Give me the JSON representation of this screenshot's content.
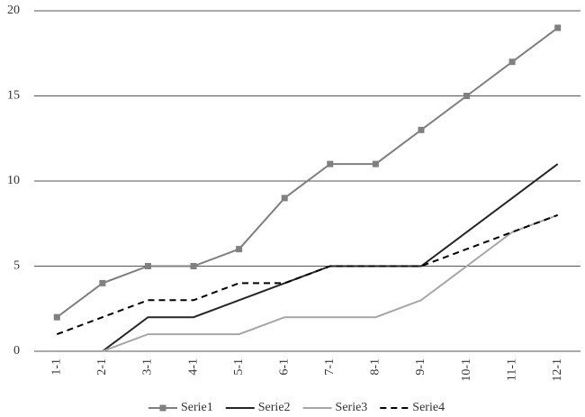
{
  "chart_data": {
    "type": "line",
    "categories": [
      "1-1",
      "2-1",
      "3-1",
      "4-1",
      "5-1",
      "6-1",
      "7-1",
      "8-1",
      "9-1",
      "10-1",
      "11-1",
      "12-1"
    ],
    "series": [
      {
        "name": "Serie1",
        "color": "#808080",
        "marker": "square",
        "values": [
          2,
          4,
          5,
          5,
          6,
          9,
          11,
          11,
          13,
          15,
          17,
          19
        ]
      },
      {
        "name": "Serie2",
        "color": "#262626",
        "values": [
          null,
          0,
          2,
          2,
          3,
          4,
          5,
          5,
          5,
          7,
          9,
          11
        ]
      },
      {
        "name": "Serie3",
        "color": "#a6a6a6",
        "values": [
          0,
          0,
          1,
          1,
          1,
          2,
          2,
          2,
          3,
          5,
          7,
          8
        ]
      },
      {
        "name": "Serie4",
        "color": "#000000",
        "dashed": true,
        "values": [
          1,
          2,
          3,
          3,
          4,
          4,
          5,
          5,
          5,
          6,
          7,
          8
        ]
      }
    ],
    "ylim": [
      0,
      20
    ],
    "yticks": [
      0,
      5,
      10,
      15,
      20
    ],
    "grid": true,
    "legend": "bottom"
  }
}
